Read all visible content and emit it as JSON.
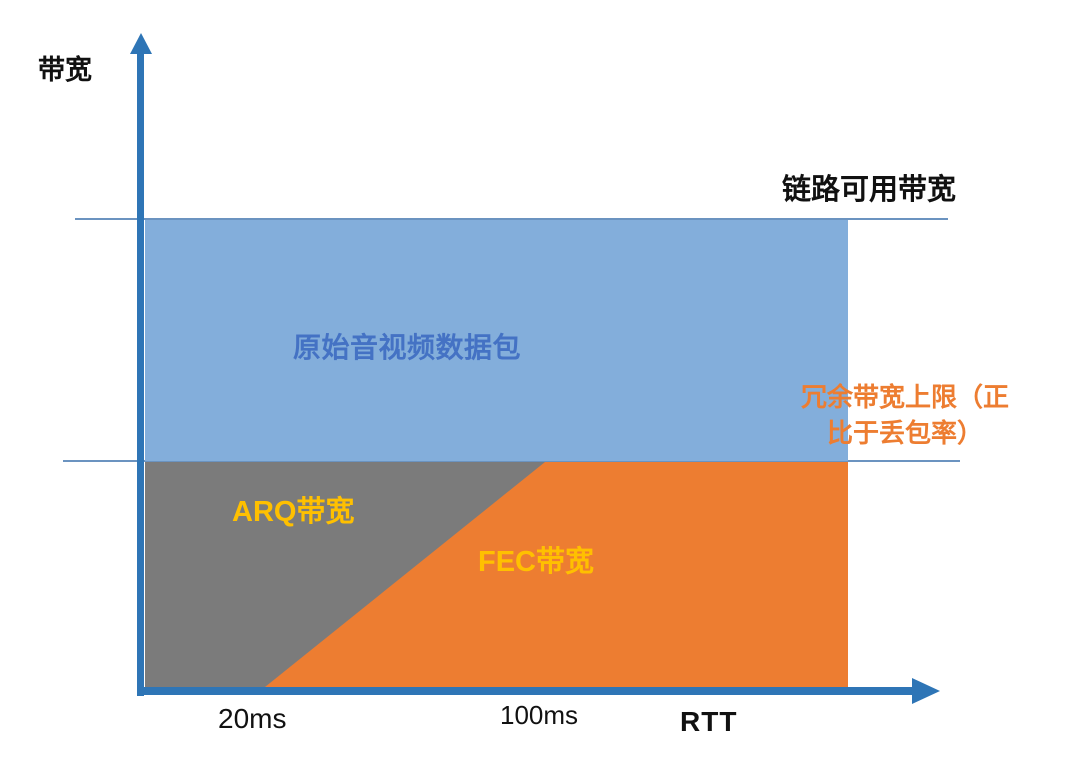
{
  "colors": {
    "axis": "#2E75B6",
    "guide_line": "#6B93C0",
    "blue_region": "#83AEDB",
    "gray_region": "#7B7B7B",
    "orange_region": "#ED7D31",
    "yellow_text": "#FFC000",
    "blue_text": "#4472C4",
    "orange_text": "#ED7D31",
    "black_text": "#111111"
  },
  "axes": {
    "y_label": "带宽",
    "x_label": "RTT",
    "x_ticks": [
      {
        "label": "20ms"
      },
      {
        "label": "100ms"
      }
    ]
  },
  "guide_lines": {
    "link_capacity_label": "链路可用带宽",
    "redundancy_cap_label": "冗余带宽上限（正比于丢包率）"
  },
  "regions": [
    {
      "name": "original-av-packets",
      "label": "原始音视频数据包"
    },
    {
      "name": "arq-bandwidth",
      "label": "ARQ带宽"
    },
    {
      "name": "fec-bandwidth",
      "label": "FEC带宽"
    }
  ]
}
